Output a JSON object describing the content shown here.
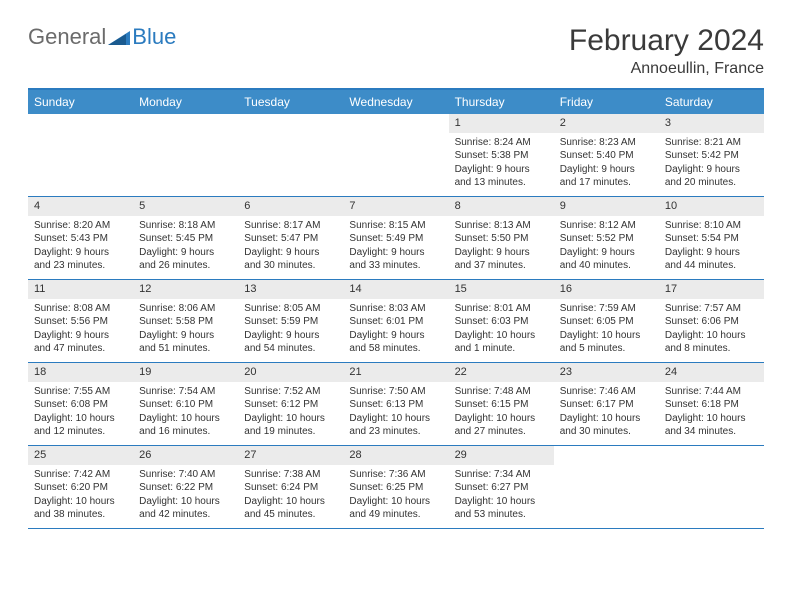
{
  "logo": {
    "general": "General",
    "blue": "Blue"
  },
  "title": "February 2024",
  "location": "Annoeullin, France",
  "colors": {
    "header_bg": "#3d8cc8",
    "header_text": "#ffffff",
    "accent": "#2b7bbf",
    "daynum_bg": "#ebebeb",
    "text": "#333333",
    "logo_gray": "#6b6b6b"
  },
  "fonts": {
    "title_size": 30,
    "location_size": 16,
    "header_size": 12,
    "body_size": 10
  },
  "day_names": [
    "Sunday",
    "Monday",
    "Tuesday",
    "Wednesday",
    "Thursday",
    "Friday",
    "Saturday"
  ],
  "weeks": [
    [
      {
        "empty": true
      },
      {
        "empty": true
      },
      {
        "empty": true
      },
      {
        "empty": true
      },
      {
        "num": "1",
        "sunrise": "Sunrise: 8:24 AM",
        "sunset": "Sunset: 5:38 PM",
        "daylight": "Daylight: 9 hours and 13 minutes."
      },
      {
        "num": "2",
        "sunrise": "Sunrise: 8:23 AM",
        "sunset": "Sunset: 5:40 PM",
        "daylight": "Daylight: 9 hours and 17 minutes."
      },
      {
        "num": "3",
        "sunrise": "Sunrise: 8:21 AM",
        "sunset": "Sunset: 5:42 PM",
        "daylight": "Daylight: 9 hours and 20 minutes."
      }
    ],
    [
      {
        "num": "4",
        "sunrise": "Sunrise: 8:20 AM",
        "sunset": "Sunset: 5:43 PM",
        "daylight": "Daylight: 9 hours and 23 minutes."
      },
      {
        "num": "5",
        "sunrise": "Sunrise: 8:18 AM",
        "sunset": "Sunset: 5:45 PM",
        "daylight": "Daylight: 9 hours and 26 minutes."
      },
      {
        "num": "6",
        "sunrise": "Sunrise: 8:17 AM",
        "sunset": "Sunset: 5:47 PM",
        "daylight": "Daylight: 9 hours and 30 minutes."
      },
      {
        "num": "7",
        "sunrise": "Sunrise: 8:15 AM",
        "sunset": "Sunset: 5:49 PM",
        "daylight": "Daylight: 9 hours and 33 minutes."
      },
      {
        "num": "8",
        "sunrise": "Sunrise: 8:13 AM",
        "sunset": "Sunset: 5:50 PM",
        "daylight": "Daylight: 9 hours and 37 minutes."
      },
      {
        "num": "9",
        "sunrise": "Sunrise: 8:12 AM",
        "sunset": "Sunset: 5:52 PM",
        "daylight": "Daylight: 9 hours and 40 minutes."
      },
      {
        "num": "10",
        "sunrise": "Sunrise: 8:10 AM",
        "sunset": "Sunset: 5:54 PM",
        "daylight": "Daylight: 9 hours and 44 minutes."
      }
    ],
    [
      {
        "num": "11",
        "sunrise": "Sunrise: 8:08 AM",
        "sunset": "Sunset: 5:56 PM",
        "daylight": "Daylight: 9 hours and 47 minutes."
      },
      {
        "num": "12",
        "sunrise": "Sunrise: 8:06 AM",
        "sunset": "Sunset: 5:58 PM",
        "daylight": "Daylight: 9 hours and 51 minutes."
      },
      {
        "num": "13",
        "sunrise": "Sunrise: 8:05 AM",
        "sunset": "Sunset: 5:59 PM",
        "daylight": "Daylight: 9 hours and 54 minutes."
      },
      {
        "num": "14",
        "sunrise": "Sunrise: 8:03 AM",
        "sunset": "Sunset: 6:01 PM",
        "daylight": "Daylight: 9 hours and 58 minutes."
      },
      {
        "num": "15",
        "sunrise": "Sunrise: 8:01 AM",
        "sunset": "Sunset: 6:03 PM",
        "daylight": "Daylight: 10 hours and 1 minute."
      },
      {
        "num": "16",
        "sunrise": "Sunrise: 7:59 AM",
        "sunset": "Sunset: 6:05 PM",
        "daylight": "Daylight: 10 hours and 5 minutes."
      },
      {
        "num": "17",
        "sunrise": "Sunrise: 7:57 AM",
        "sunset": "Sunset: 6:06 PM",
        "daylight": "Daylight: 10 hours and 8 minutes."
      }
    ],
    [
      {
        "num": "18",
        "sunrise": "Sunrise: 7:55 AM",
        "sunset": "Sunset: 6:08 PM",
        "daylight": "Daylight: 10 hours and 12 minutes."
      },
      {
        "num": "19",
        "sunrise": "Sunrise: 7:54 AM",
        "sunset": "Sunset: 6:10 PM",
        "daylight": "Daylight: 10 hours and 16 minutes."
      },
      {
        "num": "20",
        "sunrise": "Sunrise: 7:52 AM",
        "sunset": "Sunset: 6:12 PM",
        "daylight": "Daylight: 10 hours and 19 minutes."
      },
      {
        "num": "21",
        "sunrise": "Sunrise: 7:50 AM",
        "sunset": "Sunset: 6:13 PM",
        "daylight": "Daylight: 10 hours and 23 minutes."
      },
      {
        "num": "22",
        "sunrise": "Sunrise: 7:48 AM",
        "sunset": "Sunset: 6:15 PM",
        "daylight": "Daylight: 10 hours and 27 minutes."
      },
      {
        "num": "23",
        "sunrise": "Sunrise: 7:46 AM",
        "sunset": "Sunset: 6:17 PM",
        "daylight": "Daylight: 10 hours and 30 minutes."
      },
      {
        "num": "24",
        "sunrise": "Sunrise: 7:44 AM",
        "sunset": "Sunset: 6:18 PM",
        "daylight": "Daylight: 10 hours and 34 minutes."
      }
    ],
    [
      {
        "num": "25",
        "sunrise": "Sunrise: 7:42 AM",
        "sunset": "Sunset: 6:20 PM",
        "daylight": "Daylight: 10 hours and 38 minutes."
      },
      {
        "num": "26",
        "sunrise": "Sunrise: 7:40 AM",
        "sunset": "Sunset: 6:22 PM",
        "daylight": "Daylight: 10 hours and 42 minutes."
      },
      {
        "num": "27",
        "sunrise": "Sunrise: 7:38 AM",
        "sunset": "Sunset: 6:24 PM",
        "daylight": "Daylight: 10 hours and 45 minutes."
      },
      {
        "num": "28",
        "sunrise": "Sunrise: 7:36 AM",
        "sunset": "Sunset: 6:25 PM",
        "daylight": "Daylight: 10 hours and 49 minutes."
      },
      {
        "num": "29",
        "sunrise": "Sunrise: 7:34 AM",
        "sunset": "Sunset: 6:27 PM",
        "daylight": "Daylight: 10 hours and 53 minutes."
      },
      {
        "empty": true
      },
      {
        "empty": true
      }
    ]
  ]
}
